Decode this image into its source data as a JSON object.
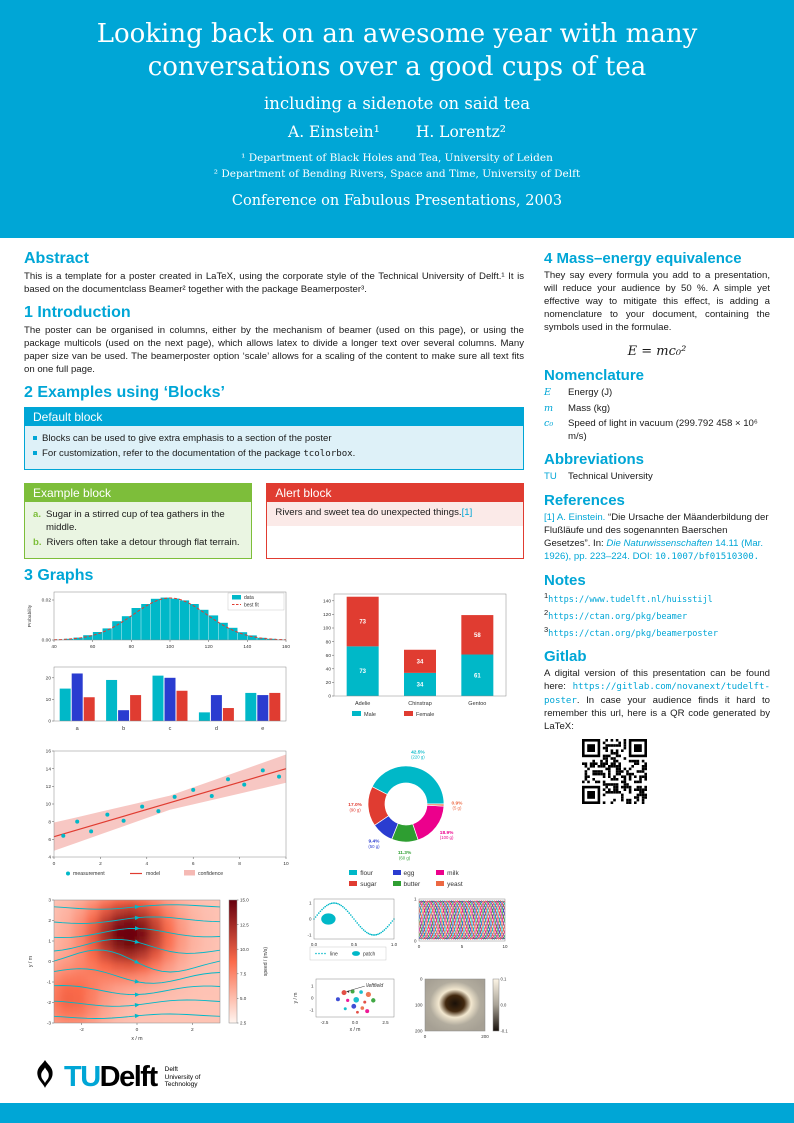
{
  "colors": {
    "primary": "#00A6D6",
    "teal": "#00B8C8",
    "red": "#E03C31",
    "blue": "#2A3CD0",
    "green": "#2E9E31",
    "magenta": "#EC008C",
    "orange": "#EC6842",
    "pink_band": "#F5B9B4",
    "example_green": "#7DBE3A"
  },
  "header": {
    "title": "Looking back on an awesome year with many conversations over a good cups of tea",
    "subtitle": "including a sidenote on said tea",
    "authors": [
      "A. Einstein¹",
      "H. Lorentz²"
    ],
    "affiliations": [
      "¹ Department of Black Holes and Tea, University of Leiden",
      "² Department of Bending Rivers, Space and Time, University of Delft"
    ],
    "conference": "Conference on Fabulous Presentations, 2003"
  },
  "abstract": {
    "heading": "Abstract",
    "text": "This is a template for a poster created in LaTeX, using the corporate style of the Technical University of Delft.¹ It is based on the documentclass Beamer² together with the package Beamerposter³."
  },
  "introduction": {
    "heading": "1 Introduction",
    "text": "The poster can be organised in columns, either by the mechanism of beamer (used on this page), or using the package multicols (used on the next page), which allows latex to divide a longer text over several columns. Many paper size van be used. The beamerposter option ‘scale’ allows for a scaling of the content to make sure all text fits on one full page."
  },
  "blocks": {
    "heading": "2 Examples using ‘Blocks’",
    "default_block": {
      "title": "Default block",
      "items": [
        "Blocks can be used to give extra emphasis to a section of the poster"
      ],
      "item2_prefix": "For customization, refer to the documentation of the package ",
      "item2_code": "tcolorbox",
      "item2_suffix": "."
    },
    "example_block": {
      "title": "Example block",
      "items": [
        {
          "label": "a.",
          "text": "Sugar in a stirred cup of tea gathers in the middle."
        },
        {
          "label": "b.",
          "text": "Rivers often take a detour through flat terrain."
        }
      ]
    },
    "alert_block": {
      "title": "Alert block",
      "text": "Rivers and sweet tea do unexpected things.",
      "citation": "[1]"
    }
  },
  "graphs": {
    "heading": "3 Graphs"
  },
  "chart_data": {
    "histogram": {
      "type": "bar",
      "ylabel": "Probability",
      "xlim": [
        40,
        160
      ],
      "ylim": [
        0,
        0.024
      ],
      "xticks": [
        40,
        60,
        80,
        100,
        120,
        140,
        160
      ],
      "yticks": [
        0,
        0.02
      ],
      "bin_start": 40,
      "bin_width": 5,
      "bins": [
        0.0002,
        0.0006,
        0.0012,
        0.0024,
        0.004,
        0.0058,
        0.0094,
        0.0119,
        0.016,
        0.018,
        0.0206,
        0.0212,
        0.0207,
        0.0198,
        0.018,
        0.0151,
        0.0123,
        0.0086,
        0.0061,
        0.0039,
        0.0023,
        0.0011,
        0.0006,
        0.0002
      ],
      "fit": {
        "mean": 100,
        "sigma": 19,
        "peak": 0.021
      },
      "legend": [
        {
          "label": "data",
          "color": "#00B8C8"
        },
        {
          "label": "best fit",
          "color": "#E03C31"
        }
      ]
    },
    "grouped_bars": {
      "type": "bar",
      "categories": [
        "a",
        "b",
        "c",
        "d",
        "e"
      ],
      "ylim": [
        0,
        25
      ],
      "yticks": [
        0,
        10,
        20
      ],
      "series": [
        {
          "name": "series1",
          "color": "#00B8C8",
          "values": [
            15,
            19,
            21,
            4,
            13
          ]
        },
        {
          "name": "series2",
          "color": "#2A3CD0",
          "values": [
            22,
            5,
            20,
            12,
            12
          ]
        },
        {
          "name": "series3",
          "color": "#E03C31",
          "values": [
            11,
            12,
            14,
            6,
            13
          ]
        }
      ]
    },
    "stacked_bars": {
      "type": "bar",
      "categories": [
        "Adelie",
        "Chinstrap",
        "Gentoo"
      ],
      "ylim": [
        0,
        150
      ],
      "yticks": [
        0,
        20,
        40,
        60,
        80,
        100,
        120,
        140
      ],
      "series": [
        {
          "name": "Male",
          "color": "#00B8C8",
          "values": [
            73,
            34,
            61
          ]
        },
        {
          "name": "Female",
          "color": "#E03C31",
          "values": [
            73,
            34,
            58
          ]
        }
      ]
    },
    "regression": {
      "type": "scatter",
      "xticks": [
        0,
        2,
        4,
        6,
        8,
        10
      ],
      "yticks": [
        4,
        6,
        8,
        10,
        12,
        14,
        16
      ],
      "points": [
        [
          0.4,
          6.4
        ],
        [
          1.0,
          8.0
        ],
        [
          1.6,
          6.9
        ],
        [
          2.3,
          8.8
        ],
        [
          3.0,
          8.1
        ],
        [
          3.8,
          9.7
        ],
        [
          4.5,
          9.2
        ],
        [
          5.2,
          10.8
        ],
        [
          6.0,
          11.6
        ],
        [
          6.8,
          10.9
        ],
        [
          7.5,
          12.8
        ],
        [
          8.2,
          12.2
        ],
        [
          9.0,
          13.8
        ],
        [
          9.7,
          13.1
        ]
      ],
      "model": {
        "y0": 6.3,
        "y1": 14.0
      },
      "band": {
        "base": 0.8,
        "slope": 0.16
      },
      "legend": [
        {
          "label": "measurement"
        },
        {
          "label": "model"
        },
        {
          "label": "confidence"
        }
      ]
    },
    "donut": {
      "type": "pie",
      "slices": [
        {
          "label": "flour",
          "pct": 42.5,
          "grams": "220 g",
          "color": "#00B8C8"
        },
        {
          "label": "sugar",
          "pct": 17.0,
          "grams": "90 g",
          "color": "#E03C31"
        },
        {
          "label": "egg",
          "pct": 9.4,
          "grams": "50 g",
          "color": "#2A3CD0"
        },
        {
          "label": "butter",
          "pct": 11.3,
          "grams": "60 g",
          "color": "#2E9E31"
        },
        {
          "label": "milk",
          "pct": 18.9,
          "grams": "100 g",
          "color": "#EC008C"
        },
        {
          "label": "yeast",
          "pct": 0.9,
          "grams": "5 g",
          "color": "#EC6842"
        }
      ]
    },
    "streamplot": {
      "type": "heatmap",
      "xlabel": "x / m",
      "ylabel": "y / m",
      "xticks": [
        -2,
        0,
        2
      ],
      "yticks": [
        -3,
        -2,
        -1,
        0,
        1,
        2,
        3
      ],
      "colorbar": {
        "label": "speed / (m/s)",
        "ticks": [
          2.5,
          5.0,
          7.5,
          10.0,
          12.5,
          15.0
        ]
      }
    },
    "sine": {
      "type": "line",
      "xticks": [
        0,
        0.5,
        1
      ],
      "yticks": [
        -1,
        0,
        1
      ],
      "legend": [
        "line",
        "patch"
      ],
      "ellipse": {
        "cx": 0.18,
        "cy": 0,
        "rx": 0.09,
        "ry": 0.35
      }
    },
    "multiline": {
      "type": "line",
      "n_lines": 18,
      "xticks": [
        0,
        5,
        10
      ],
      "yticks": [
        0,
        1
      ],
      "colors": [
        "#00B8C8",
        "#E03C31",
        "#2A3CD0",
        "#2E9E31",
        "#EC008C",
        "#EC6842"
      ]
    },
    "scatter2": {
      "type": "scatter",
      "xlabel": "x / m",
      "ylabel": "y / m",
      "xticks": [
        -2.5,
        0,
        2.5
      ],
      "yticks": [
        -1,
        0,
        1
      ],
      "annotation": "\\leftfield",
      "points": [
        {
          "x": -0.9,
          "y": 0.45,
          "c": "#E03C31",
          "r": 2.5
        },
        {
          "x": -0.2,
          "y": 0.55,
          "c": "#2E9E31",
          "r": 2
        },
        {
          "x": 0.5,
          "y": 0.5,
          "c": "#00B8C8",
          "r": 1.8
        },
        {
          "x": 1.1,
          "y": 0.3,
          "c": "#EC6842",
          "r": 2.6
        },
        {
          "x": -1.4,
          "y": -0.1,
          "c": "#2A3CD0",
          "r": 2
        },
        {
          "x": -0.6,
          "y": -0.2,
          "c": "#EC008C",
          "r": 1.6
        },
        {
          "x": 0.1,
          "y": -0.15,
          "c": "#00B8C8",
          "r": 2.8
        },
        {
          "x": 0.8,
          "y": -0.35,
          "c": "#E03C31",
          "r": 1.5
        },
        {
          "x": 1.5,
          "y": -0.2,
          "c": "#2E9E31",
          "r": 2.2
        },
        {
          "x": -0.1,
          "y": -0.7,
          "c": "#2A3CD0",
          "r": 2.4
        },
        {
          "x": 0.6,
          "y": -0.85,
          "c": "#EC6842",
          "r": 1.8
        },
        {
          "x": -0.8,
          "y": -0.9,
          "c": "#00B8C8",
          "r": 1.5
        },
        {
          "x": 1.0,
          "y": -1.1,
          "c": "#EC008C",
          "r": 2
        },
        {
          "x": 0.2,
          "y": -1.2,
          "c": "#E03C31",
          "r": 1.4
        }
      ]
    },
    "image_plot": {
      "type": "heatmap",
      "xticks": [
        0,
        200
      ],
      "yticks": [
        0,
        100,
        200
      ],
      "colorbar_ticks": [
        0.1,
        0.0,
        -0.1
      ]
    }
  },
  "mass_energy": {
    "heading": "4 Mass–energy equivalence",
    "text": "They say every formula you add to a presentation, will reduce your audience by 50 %. A simple yet effective way to mitigate this effect, is adding a nomenclature to your document, containing the symbols used in the formulae.",
    "formula": "E = mc₀²"
  },
  "nomenclature": {
    "heading": "Nomenclature",
    "items": [
      {
        "symbol": "E",
        "desc": "Energy (J)"
      },
      {
        "symbol": "m",
        "desc": "Mass (kg)"
      },
      {
        "symbol": "c₀",
        "desc": "Speed of light in vacuum (299.792 458 × 10⁶ m/s)"
      }
    ]
  },
  "abbreviations": {
    "heading": "Abbreviations",
    "items": [
      {
        "abbr": "TU",
        "desc": "Technical University"
      }
    ]
  },
  "references": {
    "heading": "References",
    "items": [
      {
        "num": "[1]",
        "author": "A. Einstein.",
        "title": "“Die Ursache der Mäanderbildung der Flußläufe und des sogenannten Baerschen Gesetzes”. In:",
        "journal": "Die Naturwissenschaften",
        "journal_rest": "14.11 (Mar. 1926), pp. 223–224.",
        "doi_label": "DOI:",
        "doi": "10.1007/bf01510300."
      }
    ]
  },
  "notes": {
    "heading": "Notes",
    "items": [
      {
        "sup": "1",
        "url": "https://www.tudelft.nl/huisstijl"
      },
      {
        "sup": "2",
        "url": "https://ctan.org/pkg/beamer"
      },
      {
        "sup": "3",
        "url": "https://ctan.org/pkg/beamerposter"
      }
    ]
  },
  "gitlab": {
    "heading": "Gitlab",
    "text_before": "A digital version of this presentation can be found here: ",
    "url": "https://gitlab.com/novanext/tudelft-poster",
    "text_after": ". In case your audience finds it hard to remember this url, here is a QR code generated by ",
    "latex": "LaTeX",
    "suffix": ":"
  },
  "logo": {
    "tu": "TU",
    "delft": "Delft",
    "tagline": [
      "Delft",
      "University of",
      "Technology"
    ]
  }
}
